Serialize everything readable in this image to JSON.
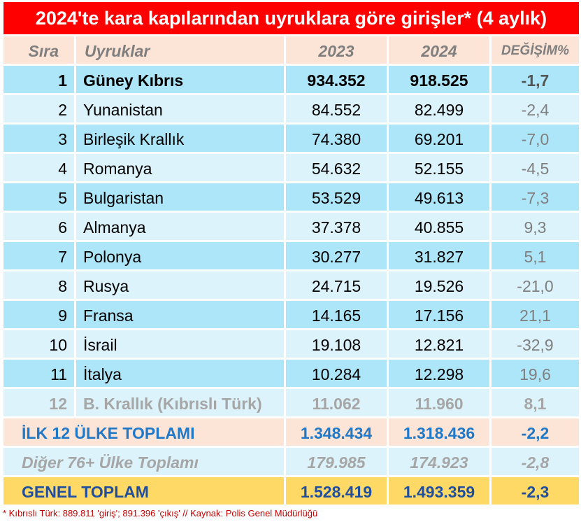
{
  "title": "2024'te kara kapılarından uyruklara göre girişler* (4 aylık)",
  "headers": {
    "rank": "Sıra",
    "nation": "Uyruklar",
    "y2023": "2023",
    "y2024": "2024",
    "change": "DEĞİŞİM%"
  },
  "rows": [
    {
      "rank": "1",
      "name": "Güney Kıbrıs",
      "v2023": "934.352",
      "v2024": "918.525",
      "chg": "-1,7"
    },
    {
      "rank": "2",
      "name": "Yunanistan",
      "v2023": "84.552",
      "v2024": "82.499",
      "chg": "-2,4"
    },
    {
      "rank": "3",
      "name": "Birleşik Krallık",
      "v2023": "74.380",
      "v2024": "69.201",
      "chg": "-7,0"
    },
    {
      "rank": "4",
      "name": "Romanya",
      "v2023": "54.632",
      "v2024": "52.155",
      "chg": "-4,5"
    },
    {
      "rank": "5",
      "name": "Bulgaristan",
      "v2023": "53.529",
      "v2024": "49.613",
      "chg": "-7,3"
    },
    {
      "rank": "6",
      "name": "Almanya",
      "v2023": "37.378",
      "v2024": "40.855",
      "chg": "9,3"
    },
    {
      "rank": "7",
      "name": "Polonya",
      "v2023": "30.277",
      "v2024": "31.827",
      "chg": "5,1"
    },
    {
      "rank": "8",
      "name": "Rusya",
      "v2023": "24.715",
      "v2024": "19.526",
      "chg": "-21,0"
    },
    {
      "rank": "9",
      "name": "Fransa",
      "v2023": "14.165",
      "v2024": "17.156",
      "chg": "21,1"
    },
    {
      "rank": "10",
      "name": "İsrail",
      "v2023": "19.108",
      "v2024": "12.821",
      "chg": "-32,9"
    },
    {
      "rank": "11",
      "name": "İtalya",
      "v2023": "10.284",
      "v2024": "12.298",
      "chg": "19,6"
    },
    {
      "rank": "12",
      "name": "B. Krallık (Kıbrıslı Türk)",
      "v2023": "11.062",
      "v2024": "11.960",
      "chg": "8,1"
    }
  ],
  "top12": {
    "label": "İLK 12 ÜLKE TOPLAMI",
    "v2023": "1.348.434",
    "v2024": "1.318.436",
    "chg": "-2,2"
  },
  "others": {
    "label": "Diğer 76+ Ülke Toplamı",
    "v2023": "179.985",
    "v2024": "174.923",
    "chg": "-2,8"
  },
  "grand": {
    "label": "GENEL TOPLAM",
    "v2023": "1.528.419",
    "v2024": "1.493.359",
    "chg": "-2,3"
  },
  "footnote": "* Kıbrıslı Türk: 889.811 'giriş'; 891.396 'çıkış' // Kaynak: Polis Genel Müdürlüğü"
}
